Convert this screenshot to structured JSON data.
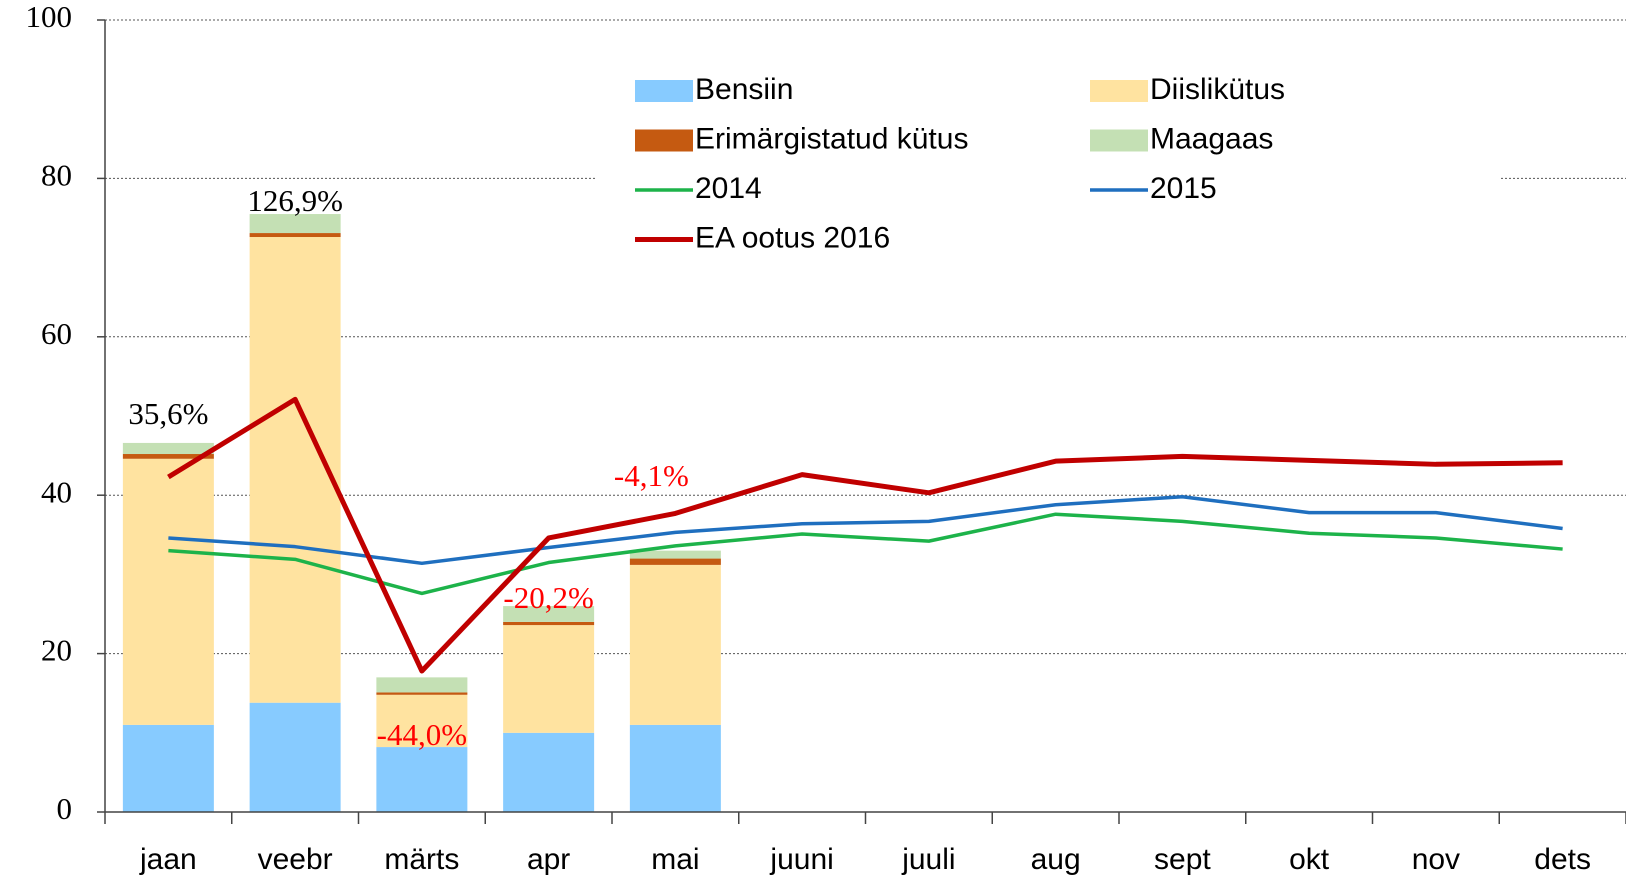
{
  "chart_data": {
    "type": "bar",
    "categories": [
      "jaan",
      "veebr",
      "märts",
      "apr",
      "mai",
      "juuni",
      "juuli",
      "aug",
      "sept",
      "okt",
      "nov",
      "dets"
    ],
    "ylim": [
      0,
      100
    ],
    "yticks": [
      0,
      20,
      40,
      60,
      80,
      100
    ],
    "grid": true,
    "legend": "top",
    "series": [
      {
        "name": "Bensiin",
        "type": "bar",
        "color": "#87cbff",
        "values": [
          11,
          13.8,
          8.2,
          10,
          11,
          null,
          null,
          null,
          null,
          null,
          null,
          null
        ]
      },
      {
        "name": "Diislikütus",
        "type": "bar",
        "color": "#ffe3a0",
        "values": [
          33.6,
          58.8,
          6.6,
          13.6,
          20.2,
          null,
          null,
          null,
          null,
          null,
          null,
          null
        ]
      },
      {
        "name": "Erimärgistatud kütus",
        "type": "bar",
        "color": "#c55a11",
        "values": [
          0.6,
          0.5,
          0.3,
          0.4,
          0.8,
          null,
          null,
          null,
          null,
          null,
          null,
          null
        ]
      },
      {
        "name": "Maagaas",
        "type": "bar",
        "color": "#c4e0b4",
        "values": [
          1.4,
          2.4,
          1.9,
          2,
          1,
          null,
          null,
          null,
          null,
          null,
          null,
          null
        ]
      },
      {
        "name": "2014",
        "type": "line",
        "color": "#1db34a",
        "values": [
          33,
          31.9,
          27.6,
          31.5,
          33.6,
          35.1,
          34.2,
          37.6,
          36.7,
          35.2,
          34.6,
          33.2
        ]
      },
      {
        "name": "2015",
        "type": "line",
        "color": "#1f6fbf",
        "values": [
          34.6,
          33.5,
          31.4,
          33.4,
          35.3,
          36.4,
          36.7,
          38.8,
          39.8,
          37.8,
          37.8,
          35.8
        ]
      },
      {
        "name": "EA ootus 2016",
        "type": "line",
        "color": "#c00000",
        "values": [
          42.3,
          52.1,
          17.8,
          34.6,
          37.7,
          42.6,
          40.3,
          44.3,
          44.9,
          44.4,
          43.9,
          44.1
        ]
      }
    ],
    "annotations": [
      {
        "text": "35,6%",
        "color": "#000000"
      },
      {
        "text": "126,9%",
        "color": "#000000"
      },
      {
        "text": "-44,0%",
        "color": "#ff0000"
      },
      {
        "text": "-20,2%",
        "color": "#ff0000"
      },
      {
        "text": "-4,1%",
        "color": "#ff0000"
      }
    ]
  }
}
